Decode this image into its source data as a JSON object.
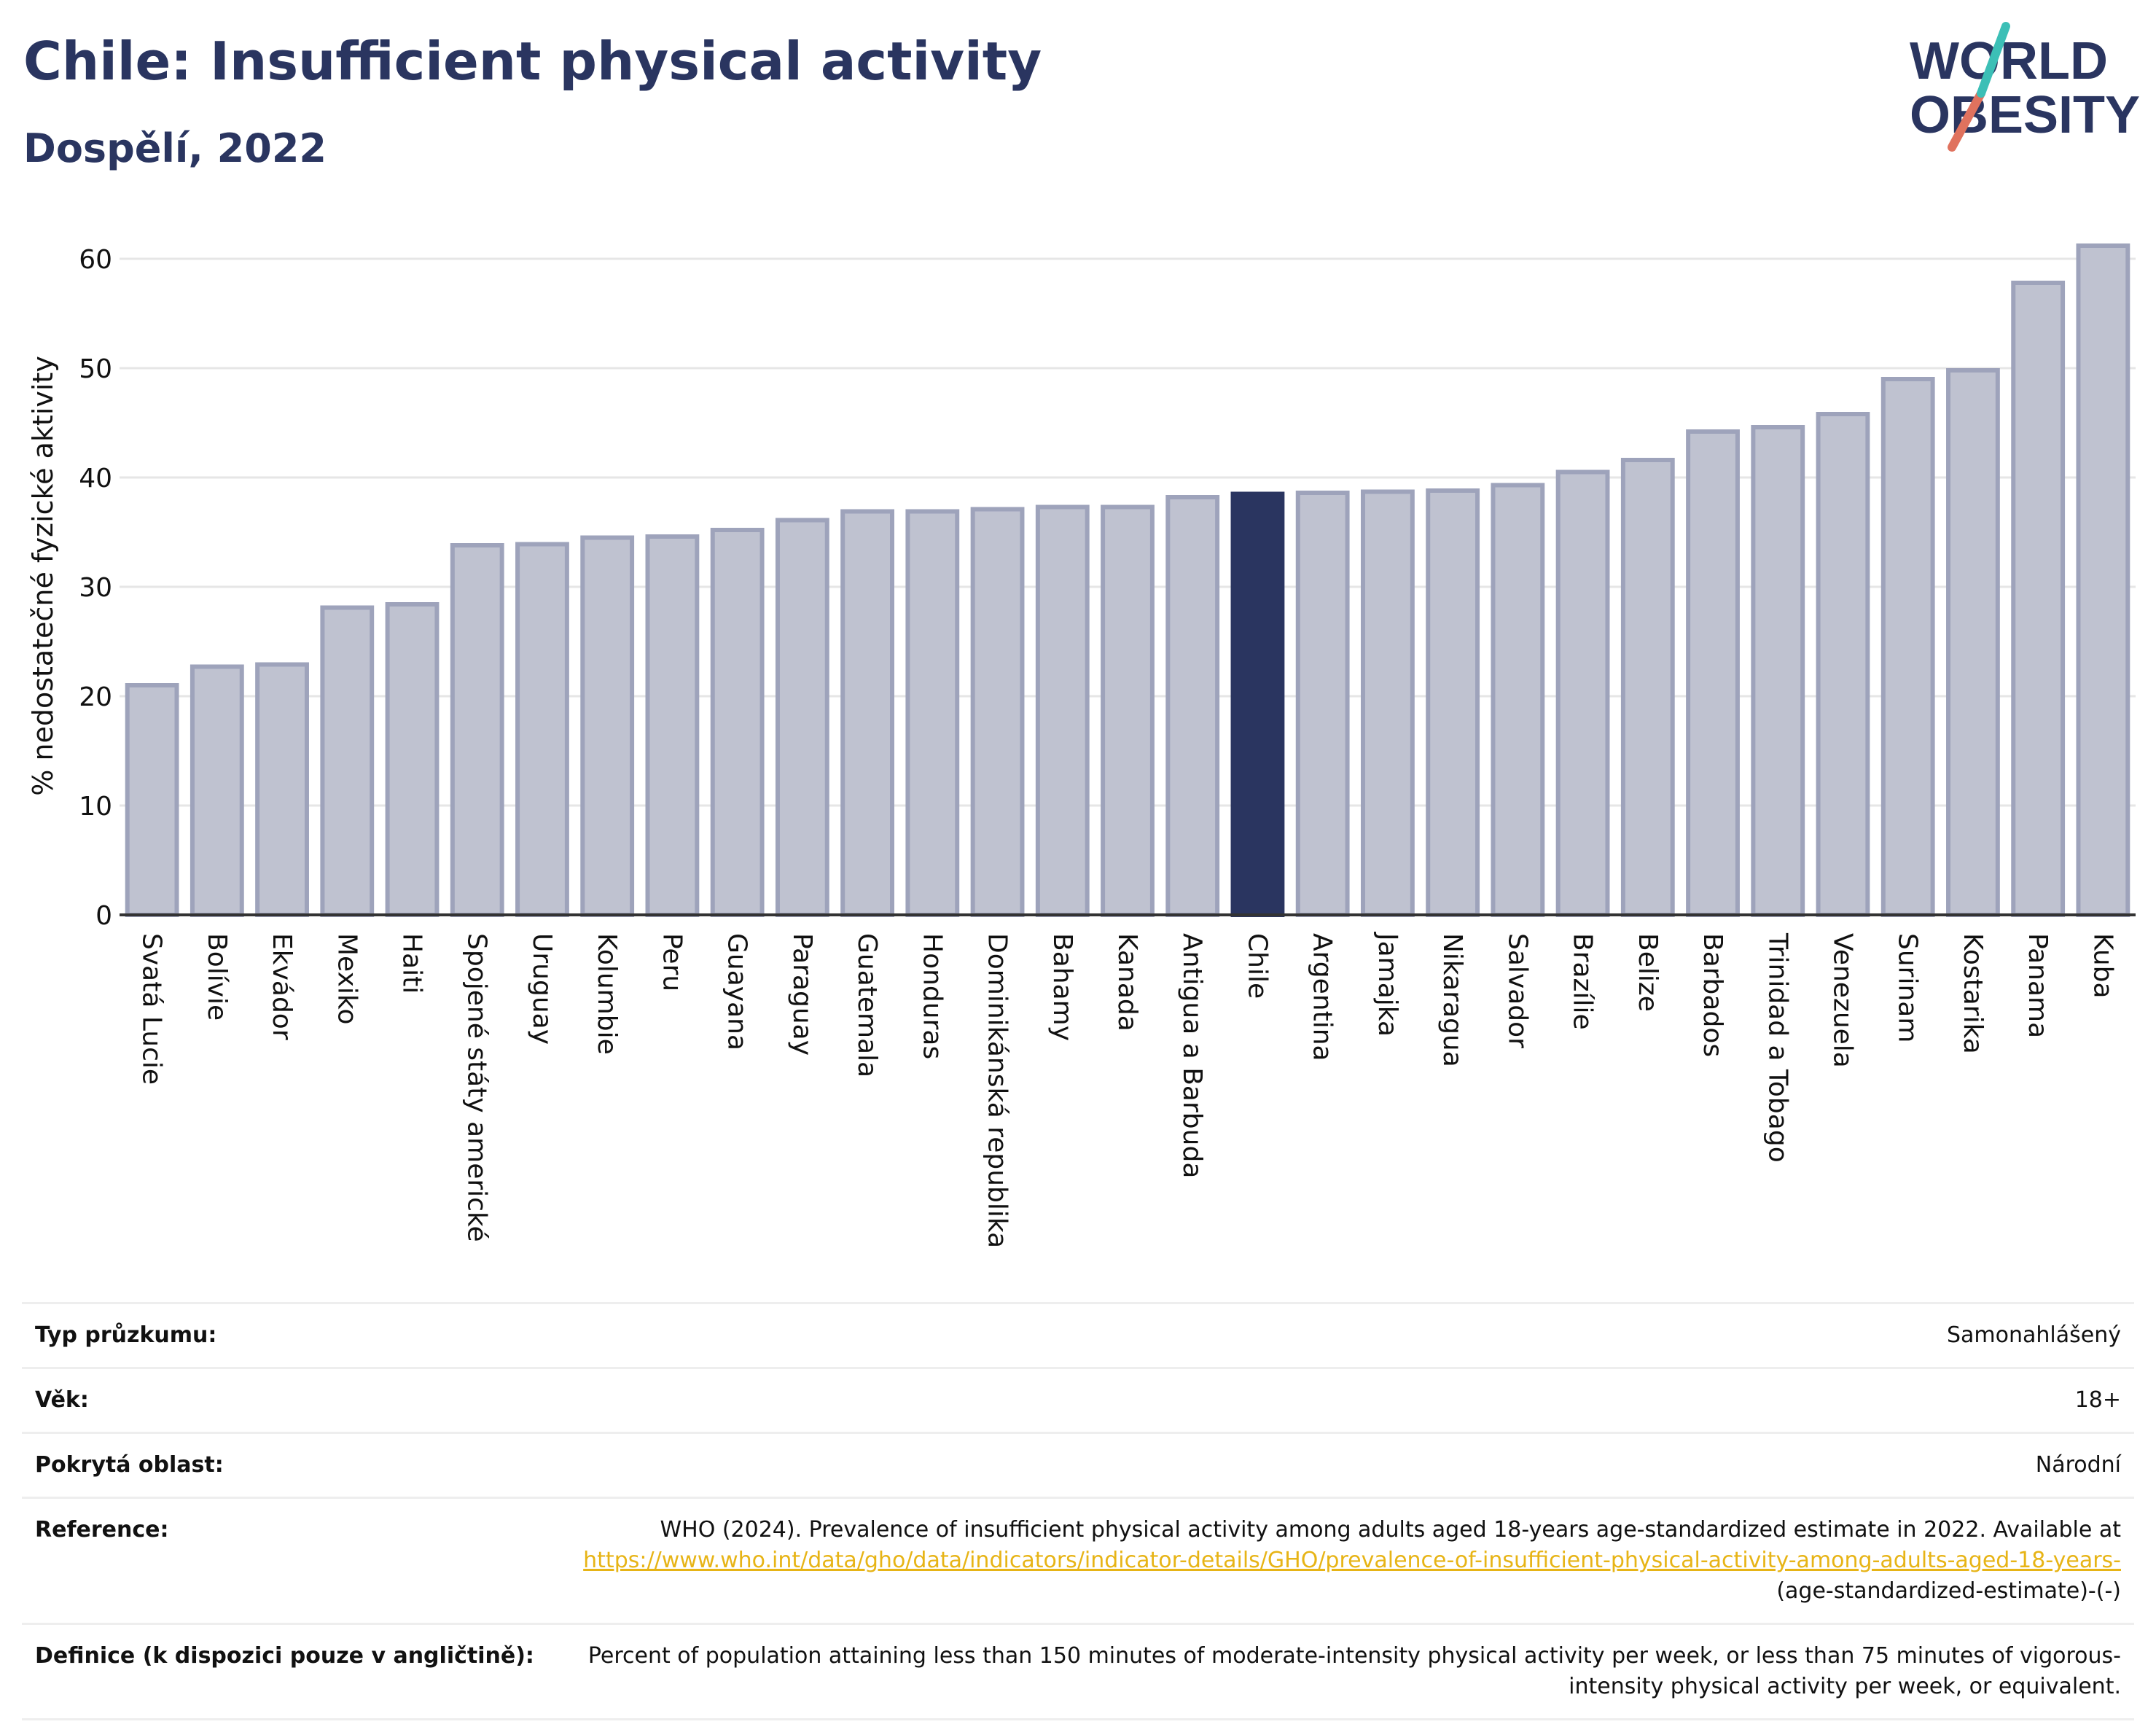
{
  "header": {
    "title": "Chile: Insufficient physical activity",
    "subtitle": "Dospělí, 2022"
  },
  "logo": {
    "line1": "WORLD",
    "line2": "OBESITY",
    "colors": [
      "#2a3560",
      "#e0725e",
      "#3cbfb6"
    ]
  },
  "chart_data": {
    "type": "bar",
    "ylabel": "% nedostatečné fyzické aktivity",
    "ylim": [
      0,
      65
    ],
    "yticks": [
      "0",
      "10",
      "20",
      "30",
      "40",
      "50",
      "60"
    ],
    "grid": true,
    "highlight": "Chile",
    "colors": {
      "bar": "#bfc2d0",
      "bar_border": "#9ea3bb",
      "highlight": "#2a3560",
      "axis": "#333333",
      "grid": "#e6e6e6"
    },
    "categories": [
      "Svatá Lucie",
      "Bolívie",
      "Ekvádor",
      "Mexiko",
      "Haiti",
      "Spojené státy americké",
      "Uruguay",
      "Kolumbie",
      "Peru",
      "Guayana",
      "Paraguay",
      "Guatemala",
      "Honduras",
      "Dominikánská republika",
      "Bahamy",
      "Kanada",
      "Antigua a Barbuda",
      "Chile",
      "Argentina",
      "Jamajka",
      "Nikaragua",
      "Salvador",
      "Brazílie",
      "Belize",
      "Barbados",
      "Trinidad a Tobago",
      "Venezuela",
      "Surinam",
      "Kostarika",
      "Panama",
      "Kuba"
    ],
    "values": [
      21.0,
      22.7,
      22.9,
      28.1,
      28.4,
      33.8,
      33.9,
      34.5,
      34.6,
      35.2,
      36.1,
      36.9,
      36.9,
      37.1,
      37.3,
      37.3,
      38.2,
      38.5,
      38.6,
      38.7,
      38.8,
      39.3,
      40.5,
      41.6,
      44.2,
      44.6,
      45.8,
      49.0,
      49.8,
      57.8,
      61.2
    ]
  },
  "info": [
    {
      "label": "Typ průzkumu:",
      "value": "Samonahlášený"
    },
    {
      "label": "Věk:",
      "value": "18+"
    },
    {
      "label": "Pokrytá oblast:",
      "value": "Národní"
    },
    {
      "label": "Reference:",
      "value_prefix": "WHO (2024). Prevalence of insufficient physical activity among adults aged 18-years age-standardized estimate in 2022. Available at",
      "link": "https://www.who.int/data/gho/data/indicators/indicator-details/GHO/prevalence-of-insufficient-physical-activity-among-adults-aged-18-years-",
      "value_suffix": "(age-standardized-estimate)-(-)"
    },
    {
      "label": "Definice (k dispozici pouze v angličtině):",
      "value": "Percent of population attaining less than 150 minutes of moderate-intensity physical activity per week, or less than 75 minutes of vigorous-intensity physical activity per week, or equivalent."
    }
  ]
}
